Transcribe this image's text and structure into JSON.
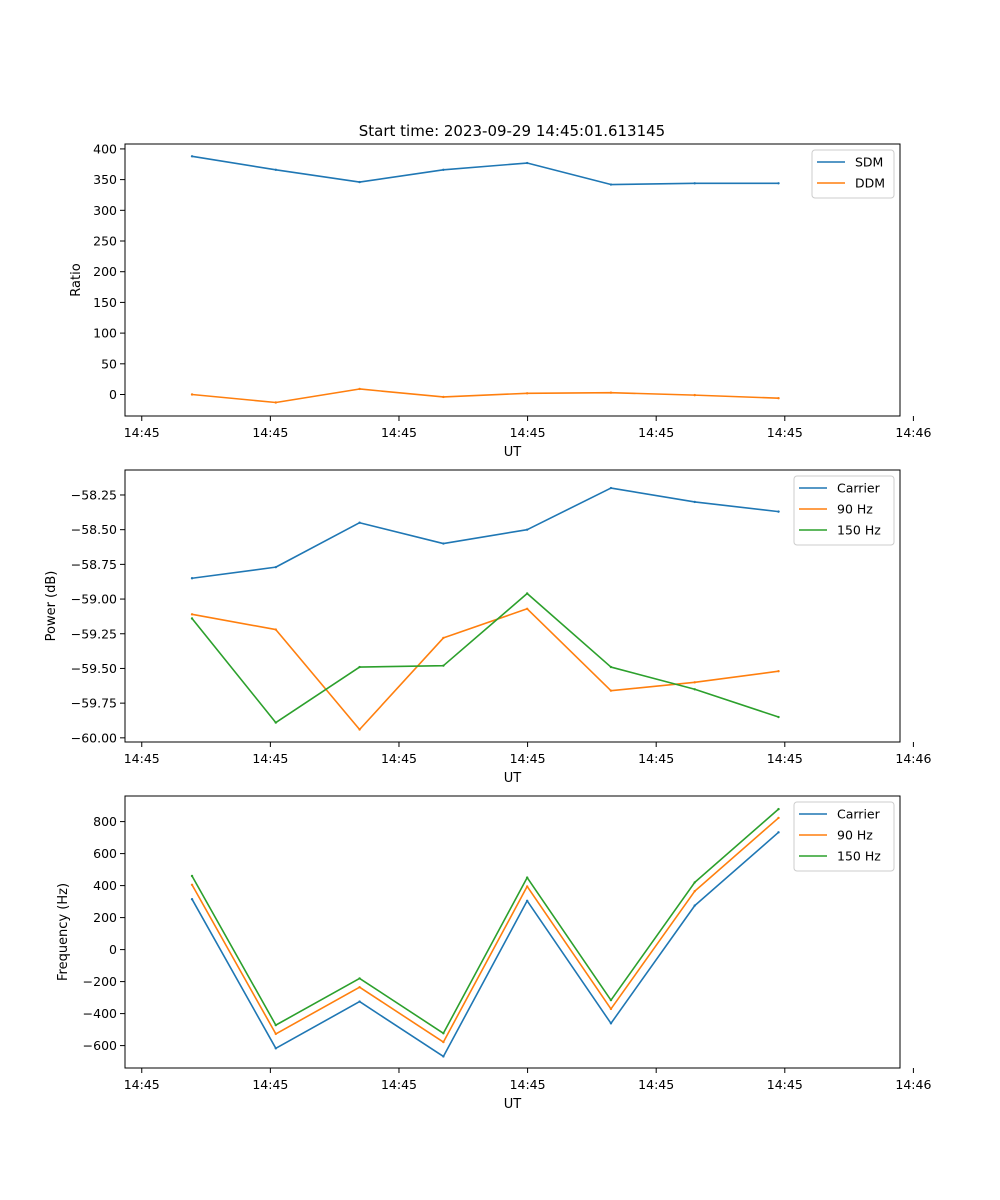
{
  "figure": {
    "title": "Start time: 2023-09-29 14:45:01.613145"
  },
  "colors": {
    "tab_blue": "#1f77b4",
    "tab_orange": "#ff7f0e",
    "tab_green": "#2ca02c"
  },
  "chart_data": [
    {
      "type": "line",
      "name": "ratio",
      "title": "Start time: 2023-09-29 14:45:01.613145",
      "xlabel": "UT",
      "ylabel": "Ratio",
      "xlim": [
        0.2,
        9.45
      ],
      "ylim": [
        -35,
        408
      ],
      "yticks": [
        0,
        50,
        100,
        150,
        200,
        250,
        300,
        350,
        400
      ],
      "ytick_labels": [
        "0",
        "50",
        "100",
        "150",
        "200",
        "250",
        "300",
        "350",
        "400"
      ],
      "xticks": [
        0.4,
        1.935,
        3.47,
        5.005,
        6.54,
        8.075,
        9.61
      ],
      "xtick_labels": [
        "14:45",
        "14:45",
        "14:45",
        "14:45",
        "14:45",
        "14:45",
        "14:46"
      ],
      "x": [
        1,
        2,
        3,
        4,
        5,
        6,
        7,
        8
      ],
      "series": [
        {
          "name": "SDM",
          "color": "#1f77b4",
          "values": [
            388,
            366,
            346,
            366,
            377,
            342,
            344,
            344
          ]
        },
        {
          "name": "DDM",
          "color": "#ff7f0e",
          "values": [
            0,
            -13,
            9,
            -4,
            2,
            3,
            -1,
            -6
          ]
        }
      ],
      "legend": "top-right",
      "grid": false
    },
    {
      "type": "line",
      "name": "power",
      "title": "",
      "xlabel": "UT",
      "ylabel": "Power (dB)",
      "xlim": [
        0.2,
        9.45
      ],
      "ylim": [
        -60.03,
        -58.07
      ],
      "yticks": [
        -60.0,
        -59.75,
        -59.5,
        -59.25,
        -59.0,
        -58.75,
        -58.5,
        -58.25
      ],
      "ytick_labels": [
        "−60.00",
        "−59.75",
        "−59.50",
        "−59.25",
        "−59.00",
        "−58.75",
        "−58.50",
        "−58.25"
      ],
      "xticks": [
        0.4,
        1.935,
        3.47,
        5.005,
        6.54,
        8.075,
        9.61
      ],
      "xtick_labels": [
        "14:45",
        "14:45",
        "14:45",
        "14:45",
        "14:45",
        "14:45",
        "14:46"
      ],
      "x": [
        1,
        2,
        3,
        4,
        5,
        6,
        7,
        8
      ],
      "series": [
        {
          "name": "Carrier",
          "color": "#1f77b4",
          "values": [
            -58.85,
            -58.77,
            -58.45,
            -58.6,
            -58.5,
            -58.2,
            -58.3,
            -58.37
          ]
        },
        {
          "name": "90 Hz",
          "color": "#ff7f0e",
          "values": [
            -59.11,
            -59.22,
            -59.94,
            -59.28,
            -59.07,
            -59.66,
            -59.6,
            -59.52
          ]
        },
        {
          "name": "150 Hz",
          "color": "#2ca02c",
          "values": [
            -59.14,
            -59.89,
            -59.49,
            -59.48,
            -58.96,
            -59.49,
            -59.65,
            -59.85
          ]
        }
      ],
      "legend": "top-right",
      "grid": false
    },
    {
      "type": "line",
      "name": "frequency",
      "title": "",
      "xlabel": "UT",
      "ylabel": "Frequency (Hz)",
      "xlim": [
        0.2,
        9.45
      ],
      "ylim": [
        -740,
        960
      ],
      "yticks": [
        -600,
        -400,
        -200,
        0,
        200,
        400,
        600,
        800
      ],
      "ytick_labels": [
        "−600",
        "−400",
        "−200",
        "0",
        "200",
        "400",
        "600",
        "800"
      ],
      "xticks": [
        0.4,
        1.935,
        3.47,
        5.005,
        6.54,
        8.075,
        9.61
      ],
      "xtick_labels": [
        "14:45",
        "14:45",
        "14:45",
        "14:45",
        "14:45",
        "14:45",
        "14:46"
      ],
      "x": [
        1,
        2,
        3,
        4,
        5,
        6,
        7,
        8
      ],
      "series": [
        {
          "name": "Carrier",
          "color": "#1f77b4",
          "values": [
            315,
            -617,
            -325,
            -668,
            305,
            -461,
            275,
            733
          ]
        },
        {
          "name": "90 Hz",
          "color": "#ff7f0e",
          "values": [
            405,
            -527,
            -235,
            -578,
            395,
            -371,
            365,
            823
          ]
        },
        {
          "name": "150 Hz",
          "color": "#2ca02c",
          "values": [
            460,
            -472,
            -180,
            -523,
            450,
            -316,
            420,
            878
          ]
        }
      ],
      "legend": "top-right",
      "grid": false
    }
  ]
}
